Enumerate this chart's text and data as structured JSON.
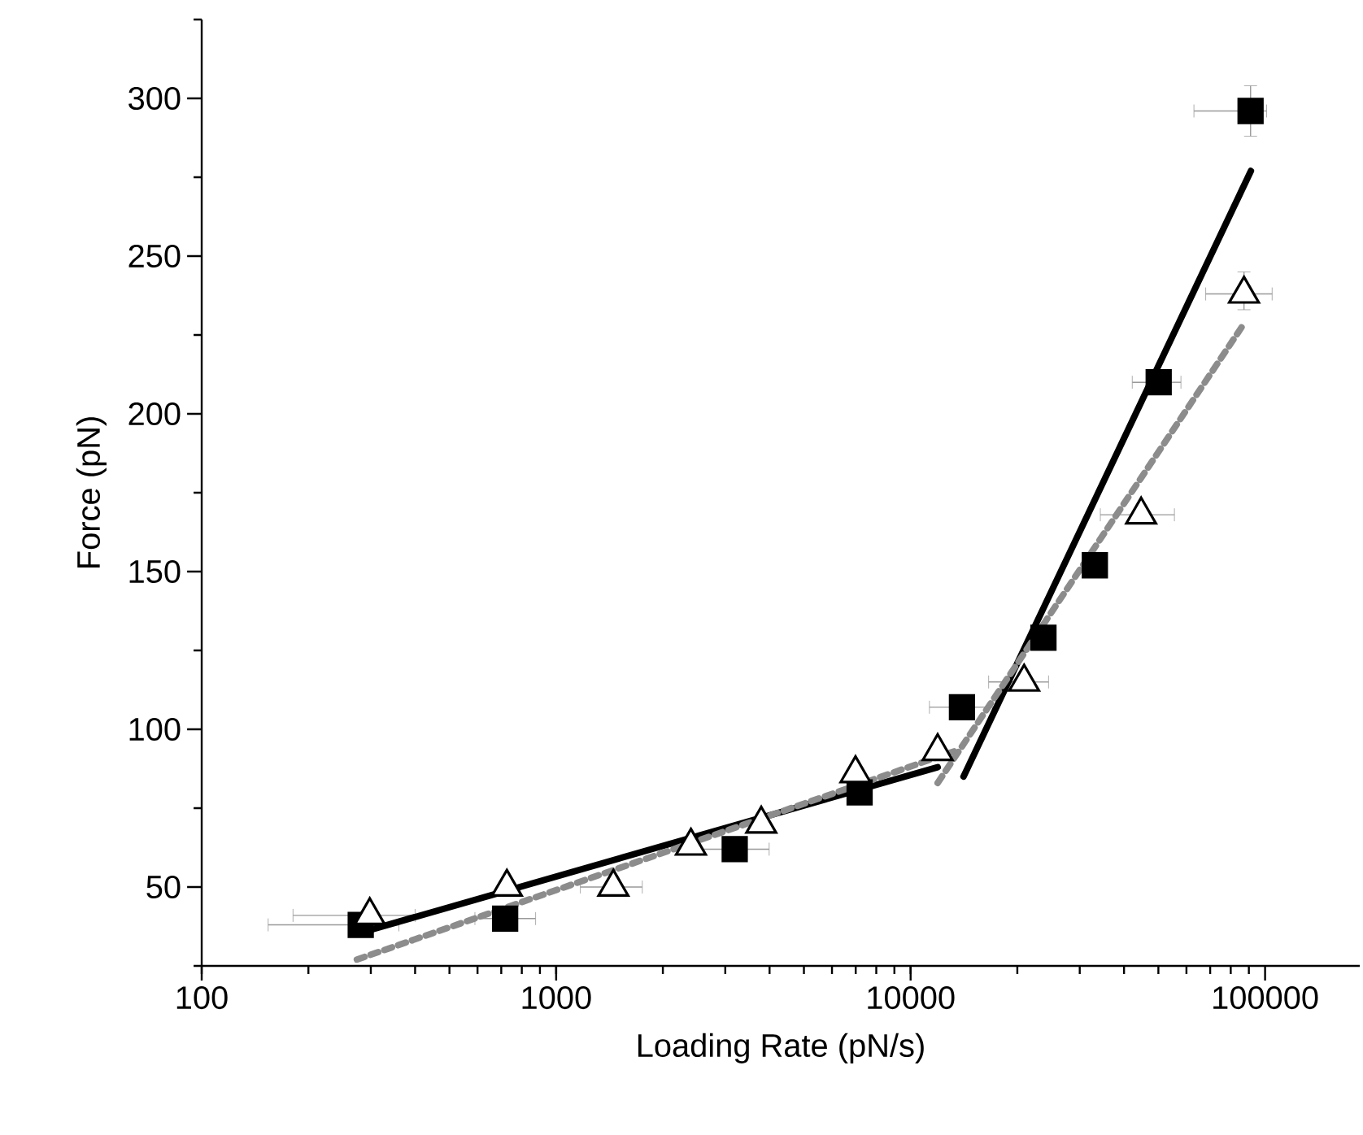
{
  "chart_data": {
    "type": "scatter",
    "xlabel": "Loading Rate (pN/s)",
    "ylabel": "Force (pN)",
    "log": "x",
    "xlim": [
      100,
      185000
    ],
    "ylim": [
      25,
      325
    ],
    "xticks": [
      100,
      1000,
      10000,
      100000
    ],
    "yticks": [
      50,
      100,
      150,
      200,
      250,
      300
    ],
    "series": [
      {
        "type": "scatter",
        "marker": "square",
        "color": "#000000",
        "x": [
          281,
          718,
          3190,
          7180,
          13960,
          23700,
          33100,
          50100,
          91000
        ],
        "values": [
          38,
          40,
          62,
          80,
          107,
          129,
          152,
          210,
          296
        ],
        "xerrors": [
          [
            154,
            360
          ],
          [
            590,
            875
          ],
          [
            2550,
            3990
          ],
          null,
          [
            11300,
            17000
          ],
          null,
          null,
          [
            42200,
            57900
          ],
          [
            63000,
            101000
          ]
        ],
        "errors": [
          null,
          null,
          null,
          null,
          null,
          null,
          null,
          null,
          [
            288,
            304
          ]
        ]
      },
      {
        "type": "scatter",
        "marker": "triangle",
        "color": "#000000",
        "x": [
          298,
          726,
          1450,
          2400,
          3790,
          6990,
          11920,
          20900,
          44700,
          87200
        ],
        "values": [
          41,
          50,
          50,
          63,
          70,
          86,
          93,
          115,
          168,
          238
        ],
        "xerrors": [
          [
            181,
            400
          ],
          null,
          [
            1170,
            1750
          ],
          null,
          null,
          null,
          null,
          [
            16600,
            24500
          ],
          [
            34300,
            55500
          ],
          [
            68000,
            104700
          ]
        ],
        "errors": [
          null,
          null,
          null,
          null,
          null,
          null,
          null,
          null,
          null,
          [
            233,
            245
          ]
        ]
      },
      {
        "type": "line",
        "line_style": "solid",
        "color": "#000000",
        "x": [
          290,
          11920
        ],
        "values": [
          36,
          88
        ]
      },
      {
        "type": "line",
        "line_style": "solid",
        "color": "#000000",
        "x": [
          14100,
          91200
        ],
        "values": [
          85,
          277
        ]
      },
      {
        "type": "line",
        "line_style": "dashed",
        "color": "#8c8c8c",
        "x": [
          274,
          13250
        ],
        "values": [
          27,
          93
        ]
      },
      {
        "type": "line",
        "line_style": "dashed",
        "color": "#8c8c8c",
        "x": [
          11920,
          87700
        ],
        "values": [
          83,
          229
        ]
      }
    ]
  }
}
